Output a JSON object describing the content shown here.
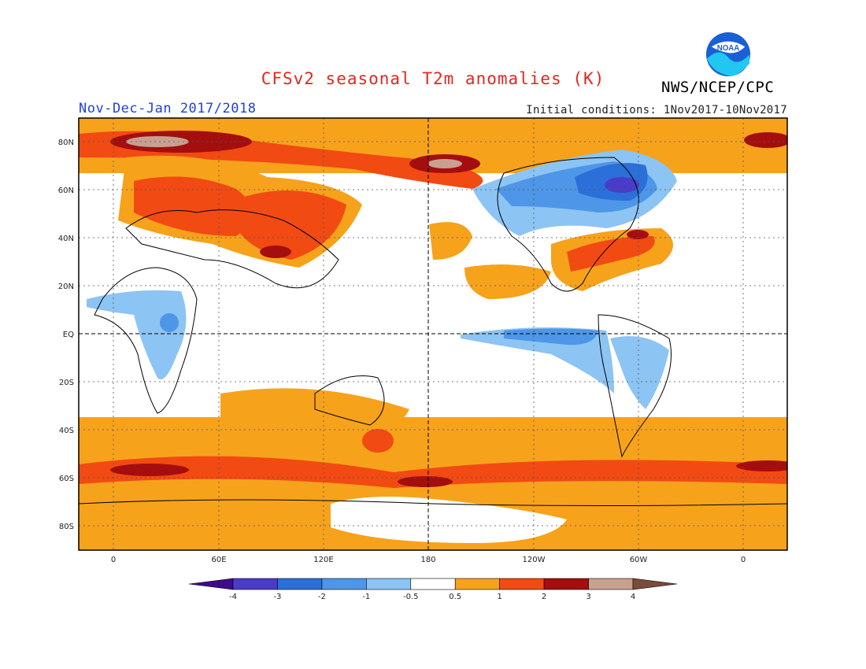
{
  "title": "CFSv2 seasonal T2m anomalies (K)",
  "period": "Nov-Dec-Jan 2017/2018",
  "initial_conditions": "Initial conditions: 1Nov2017-10Nov2017",
  "agency": "NWS/NCEP/CPC",
  "logo_text": "NOAA",
  "lat_labels": [
    "80N",
    "60N",
    "40N",
    "20N",
    "EQ",
    "20S",
    "40S",
    "60S",
    "80S"
  ],
  "lon_labels": [
    "0",
    "60E",
    "120E",
    "180",
    "120W",
    "60W",
    "0"
  ],
  "colorbar": {
    "labels": [
      "-4",
      "-3",
      "-2",
      "-1",
      "-0.5",
      "0.5",
      "1",
      "2",
      "3",
      "4"
    ],
    "colors": [
      "#3e0b8c",
      "#4a3cc8",
      "#2b6fd8",
      "#4d96e8",
      "#8cc4f3",
      "#ffffff",
      "#f7a21b",
      "#f24a13",
      "#a40e0e",
      "#c8a090",
      "#7a4a3a"
    ]
  }
}
